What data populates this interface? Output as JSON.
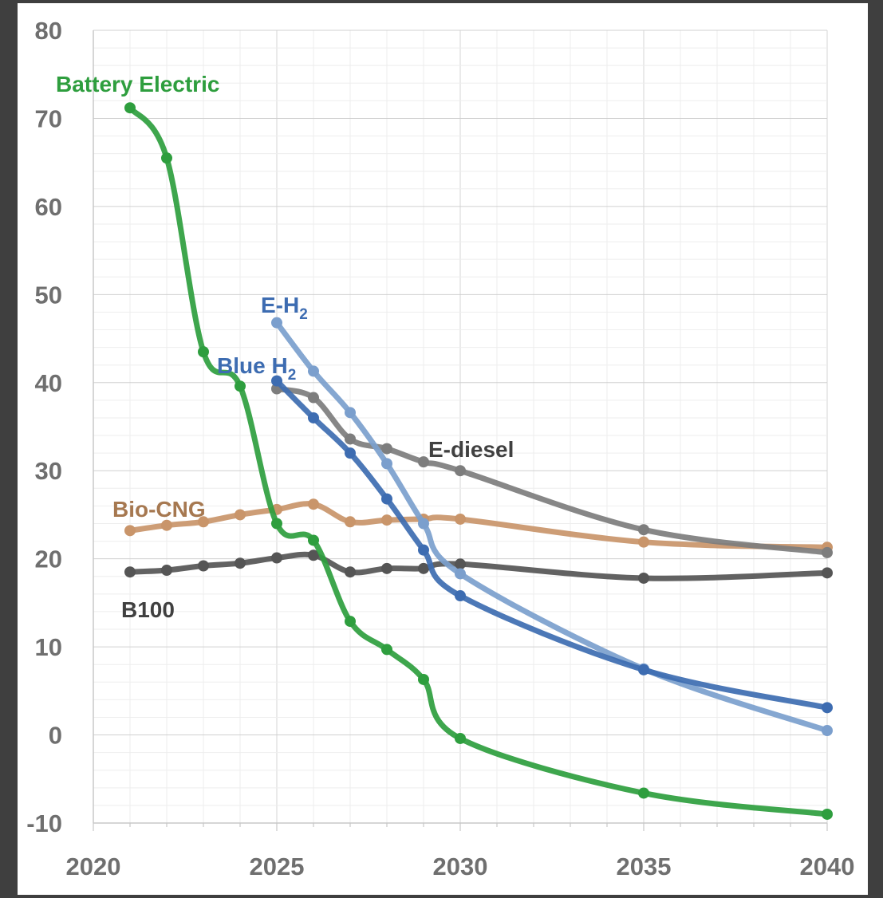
{
  "chart_data": {
    "type": "line",
    "title": "",
    "xlabel": "",
    "ylabel": "",
    "xlim": [
      2020,
      2040
    ],
    "ylim": [
      -10,
      80
    ],
    "x_ticks": [
      "2020",
      "2025",
      "2030",
      "2035",
      "2040"
    ],
    "y_ticks": [
      "-10",
      "0",
      "10",
      "20",
      "30",
      "40",
      "50",
      "60",
      "70",
      "80"
    ],
    "grid": true,
    "legend": "none (series labeled directly)",
    "series": [
      {
        "name": "Battery Electric",
        "label": "Battery Electric",
        "color": "#2e9e3e",
        "x": [
          2021,
          2022,
          2023,
          2024,
          2025,
          2026,
          2027,
          2028,
          2029,
          2030,
          2035,
          2040
        ],
        "y": [
          71.2,
          65.5,
          43.5,
          39.6,
          24.0,
          22.1,
          12.9,
          9.7,
          6.3,
          -0.4,
          -6.6,
          -9.0
        ]
      },
      {
        "name": "E-H2",
        "label": "E-H",
        "sub": "2",
        "color": "#7b9fcd",
        "x": [
          2025,
          2026,
          2027,
          2028,
          2029,
          2030,
          2035,
          2040
        ],
        "y": [
          46.8,
          41.3,
          36.6,
          30.8,
          24.0,
          18.3,
          7.5,
          0.5
        ]
      },
      {
        "name": "Blue H2",
        "label": "Blue H",
        "sub": "2",
        "color": "#3d6cb1",
        "x": [
          2025,
          2026,
          2027,
          2028,
          2029,
          2030,
          2035,
          2040
        ],
        "y": [
          40.2,
          36.0,
          32.0,
          26.8,
          21.0,
          15.8,
          7.4,
          3.1
        ]
      },
      {
        "name": "E-diesel",
        "label": "E-diesel",
        "color": "#7d7d7d",
        "x": [
          2025,
          2026,
          2027,
          2028,
          2029,
          2030,
          2035,
          2040
        ],
        "y": [
          39.3,
          38.3,
          33.6,
          32.5,
          31.0,
          30.0,
          23.3,
          20.7
        ]
      },
      {
        "name": "Bio-CNG",
        "label": "Bio-CNG",
        "color": "#c9956a",
        "x": [
          2021,
          2022,
          2023,
          2024,
          2025,
          2026,
          2027,
          2028,
          2029,
          2030,
          2035,
          2040
        ],
        "y": [
          23.2,
          23.8,
          24.2,
          25.0,
          25.6,
          26.2,
          24.2,
          24.4,
          24.5,
          24.5,
          21.9,
          21.3
        ]
      },
      {
        "name": "B100",
        "label": "B100",
        "color": "#555555",
        "x": [
          2021,
          2022,
          2023,
          2024,
          2025,
          2026,
          2027,
          2028,
          2029,
          2030,
          2035,
          2040
        ],
        "y": [
          18.5,
          18.7,
          19.2,
          19.5,
          20.1,
          20.4,
          18.5,
          18.9,
          18.9,
          19.4,
          17.8,
          18.4
        ]
      }
    ]
  }
}
